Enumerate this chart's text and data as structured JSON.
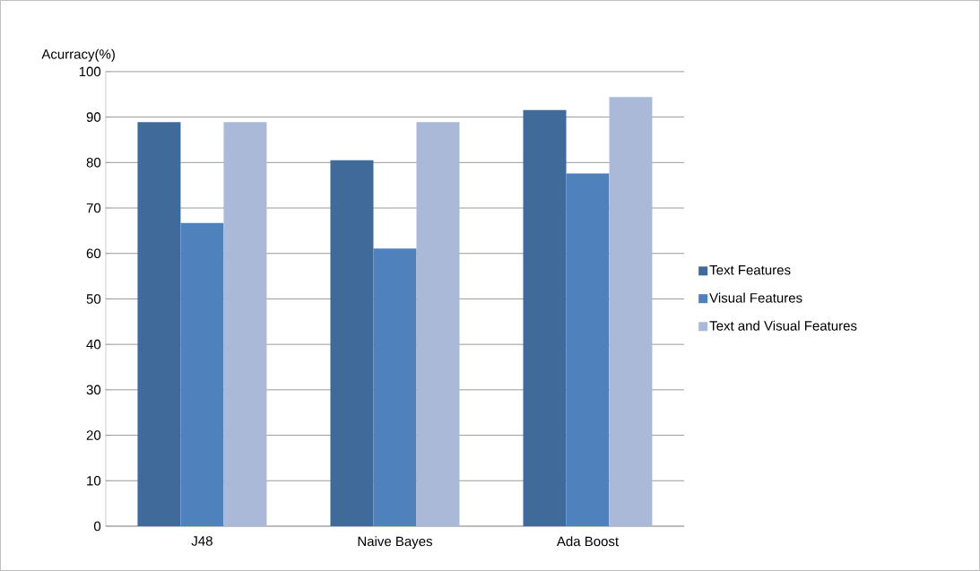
{
  "chart_data": {
    "type": "bar",
    "ylabel": "Acurracy(%)",
    "categories": [
      "J48",
      "Naive Bayes",
      "Ada Boost"
    ],
    "series": [
      {
        "name": "Text Features",
        "color": "#3f6a9a",
        "values": [
          88.9,
          80.5,
          91.6
        ]
      },
      {
        "name": "Visual Features",
        "color": "#4f81bd",
        "values": [
          66.7,
          61.1,
          77.6
        ]
      },
      {
        "name": "Text and Visual Features",
        "color": "#aab9d7",
        "values": [
          88.9,
          88.9,
          94.4
        ]
      }
    ],
    "ylim": [
      0,
      100
    ],
    "yticks": [
      0,
      10,
      20,
      30,
      40,
      50,
      60,
      70,
      80,
      90,
      100
    ],
    "grid": "y",
    "legend": "right"
  }
}
